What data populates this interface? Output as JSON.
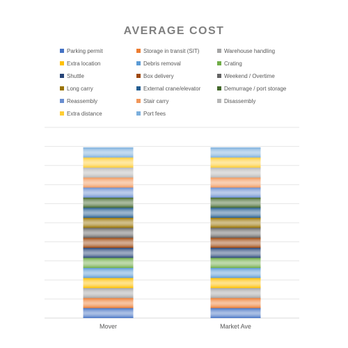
{
  "chart_data": {
    "type": "bar",
    "stacked": true,
    "title": "AVERAGE COST",
    "categories": [
      "Mover",
      "Market Ave"
    ],
    "legend_position": "top",
    "grid": true,
    "series": [
      {
        "name": "Parking permit",
        "color": "#4472c4",
        "values": [
          1,
          1
        ]
      },
      {
        "name": "Storage in transit (SIT)",
        "color": "#ed7d31",
        "values": [
          1,
          1
        ]
      },
      {
        "name": "Warehouse handling",
        "color": "#a5a5a5",
        "values": [
          1,
          1
        ]
      },
      {
        "name": "Extra location",
        "color": "#ffc000",
        "values": [
          1,
          1
        ]
      },
      {
        "name": "Debris removal",
        "color": "#5b9bd5",
        "values": [
          1,
          1
        ]
      },
      {
        "name": "Crating",
        "color": "#70ad47",
        "values": [
          1,
          1
        ]
      },
      {
        "name": "Shuttle",
        "color": "#264478",
        "values": [
          1,
          1
        ]
      },
      {
        "name": "Box delivery",
        "color": "#9e480e",
        "values": [
          1,
          1
        ]
      },
      {
        "name": "Weekend / Overtime",
        "color": "#636363",
        "values": [
          1,
          1
        ]
      },
      {
        "name": "Long carry",
        "color": "#997300",
        "values": [
          1,
          1
        ]
      },
      {
        "name": "External crane/elevator",
        "color": "#255e91",
        "values": [
          1,
          1
        ]
      },
      {
        "name": "Demurrage / port storage",
        "color": "#43682b",
        "values": [
          1,
          1
        ]
      },
      {
        "name": "Reassembly",
        "color": "#698ed0",
        "values": [
          1,
          1
        ]
      },
      {
        "name": "Stair carry",
        "color": "#f1975a",
        "values": [
          1,
          1
        ]
      },
      {
        "name": "Disassembly",
        "color": "#b7b7b7",
        "values": [
          1,
          1
        ]
      },
      {
        "name": "Extra distance",
        "color": "#ffcd33",
        "values": [
          1,
          1
        ]
      },
      {
        "name": "Port fees",
        "color": "#7cafdd",
        "values": [
          1,
          1
        ]
      }
    ],
    "ylim": [
      0,
      19
    ]
  }
}
